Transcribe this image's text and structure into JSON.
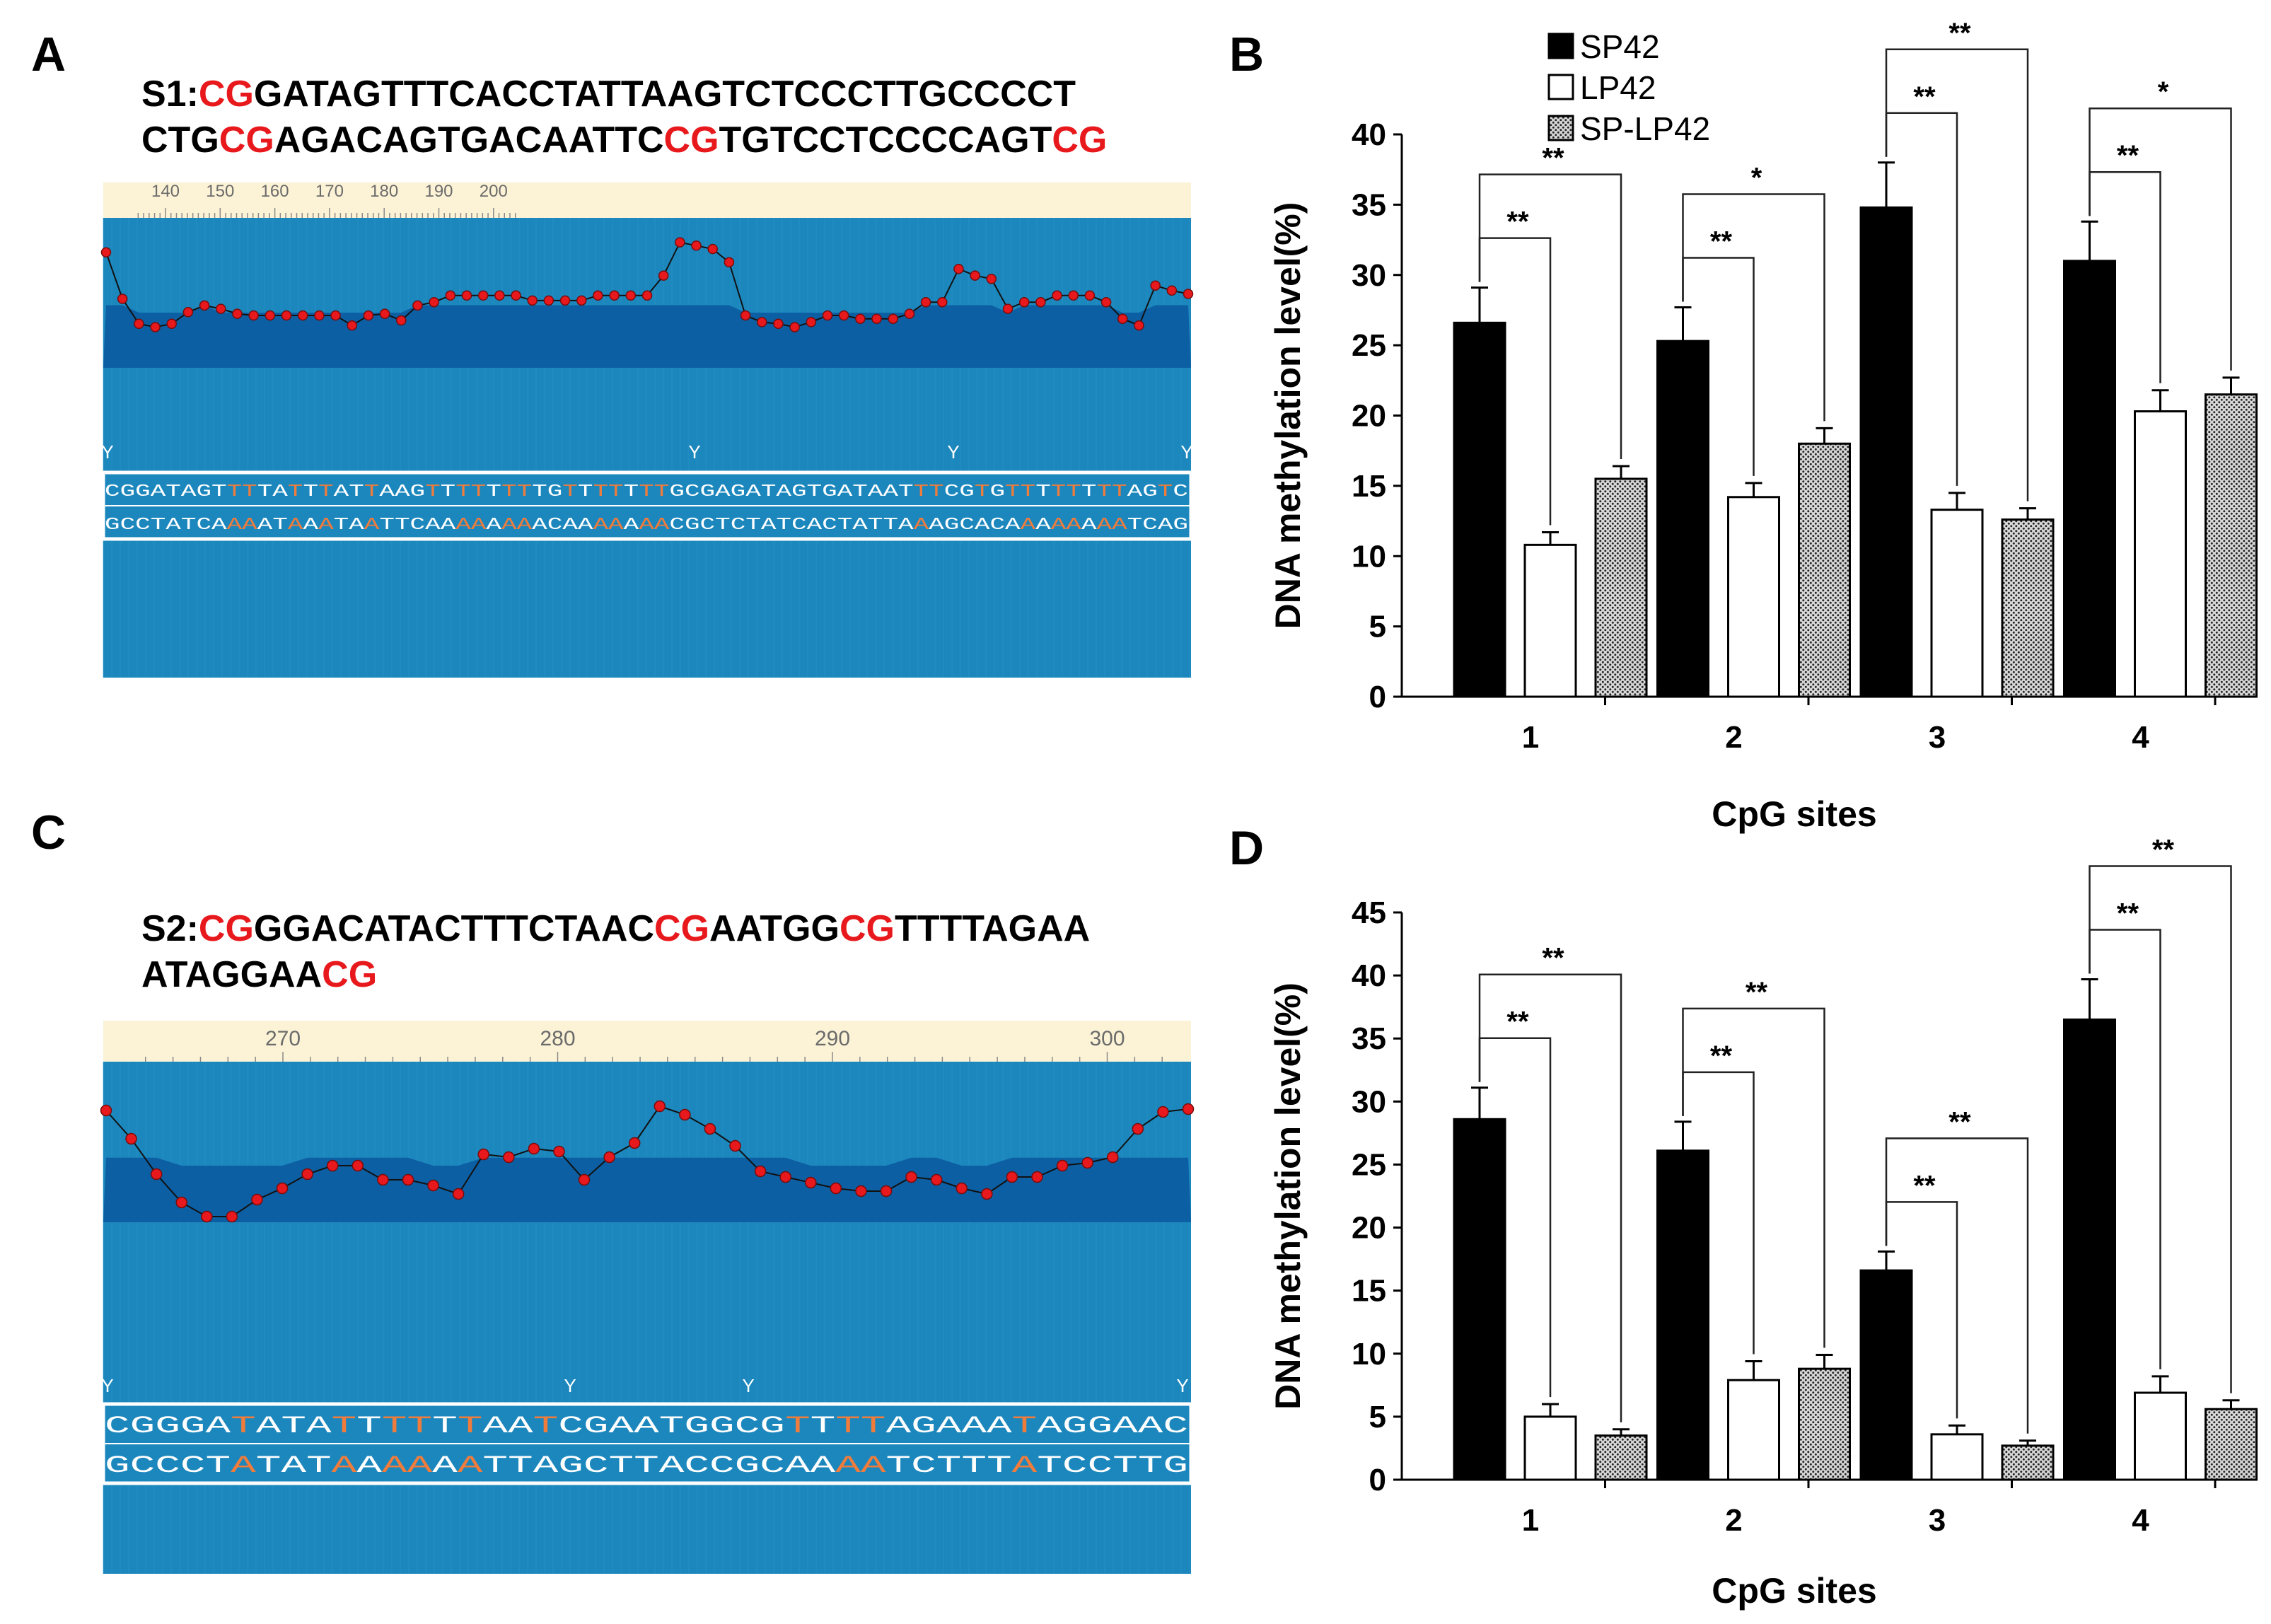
{
  "panels": {
    "A": {
      "letter": "A",
      "seq_line1": [
        {
          "t": "S1:",
          "red": false
        },
        {
          "t": "CG",
          "red": true
        },
        {
          "t": "GATAGTTTCACCTATTAAGTCTCCCTTGCCCCT",
          "red": false
        }
      ],
      "seq_line2": [
        {
          "t": "CTG",
          "red": false
        },
        {
          "t": "CG",
          "red": true
        },
        {
          "t": "AGACAGTGACAATTC",
          "red": false
        },
        {
          "t": "CG",
          "red": true
        },
        {
          "t": "TGTCCTCCCCAGT",
          "red": false
        },
        {
          "t": "CG",
          "red": true
        }
      ],
      "ruler": [
        "140",
        "150",
        "160",
        "170",
        "180",
        "190",
        "200"
      ],
      "y_marks": [
        "Y",
        "Y",
        "Y",
        "Y"
      ],
      "bisulfite_line1": "CGGATAGTTTTATTTATTAAGTTTTTTTTGTTTTTTTGCGAGATAGTGATAATTTCGTGTTTTTTTTAGTC",
      "bisulfite_line2": "GCCTATCAAAATAAATAATTCAAAAAAAACAAAAAAACGCTCTATCACTATTAAAGCACAAAAAAAATCAG",
      "profile": [
        0.78,
        0.5,
        0.35,
        0.33,
        0.35,
        0.42,
        0.46,
        0.44,
        0.41,
        0.4,
        0.4,
        0.4,
        0.4,
        0.4,
        0.4,
        0.34,
        0.4,
        0.41,
        0.37,
        0.46,
        0.48,
        0.52,
        0.52,
        0.52,
        0.52,
        0.52,
        0.49,
        0.49,
        0.49,
        0.49,
        0.52,
        0.52,
        0.52,
        0.52,
        0.64,
        0.84,
        0.82,
        0.8,
        0.72,
        0.4,
        0.36,
        0.35,
        0.33,
        0.36,
        0.4,
        0.4,
        0.38,
        0.38,
        0.38,
        0.41,
        0.48,
        0.48,
        0.68,
        0.64,
        0.62,
        0.44,
        0.48,
        0.48,
        0.52,
        0.52,
        0.52,
        0.48,
        0.38,
        0.34,
        0.58,
        0.55,
        0.53
      ]
    },
    "C": {
      "letter": "C",
      "seq_line1": [
        {
          "t": "S2:",
          "red": false
        },
        {
          "t": "CG",
          "red": true
        },
        {
          "t": "GGACATACTTTCTAAC",
          "red": false
        },
        {
          "t": "CG",
          "red": true
        },
        {
          "t": "AATGG",
          "red": false
        },
        {
          "t": "CG",
          "red": true
        },
        {
          "t": "TTTTAGAA",
          "red": false
        }
      ],
      "seq_line2": [
        {
          "t": "ATAGGAA",
          "red": false
        },
        {
          "t": "CG",
          "red": true
        }
      ],
      "ruler": [
        "270",
        "280",
        "290",
        "300"
      ],
      "y_marks": [
        "Y",
        "Y",
        "Y",
        "Y"
      ],
      "bisulfite_line1": "CGGGATATATTTTTTAATCGAATGGCGTTTTAGAAATAGGAAC",
      "bisulfite_line2": "GCCCTATATAAAAAATTAGCTTACCGCAAAATCTTTATCCTTG",
      "profile": [
        0.95,
        0.75,
        0.5,
        0.3,
        0.2,
        0.2,
        0.32,
        0.4,
        0.5,
        0.56,
        0.56,
        0.46,
        0.46,
        0.42,
        0.36,
        0.64,
        0.62,
        0.68,
        0.66,
        0.46,
        0.62,
        0.72,
        0.98,
        0.92,
        0.82,
        0.7,
        0.52,
        0.48,
        0.44,
        0.4,
        0.38,
        0.38,
        0.48,
        0.46,
        0.4,
        0.36,
        0.48,
        0.48,
        0.56,
        0.58,
        0.62,
        0.82,
        0.94,
        0.96
      ]
    }
  },
  "chart_data": [
    {
      "panel": "B",
      "type": "bar",
      "title": "",
      "xlabel": "CpG sites",
      "ylabel": "DNA methylation level(%)",
      "categories": [
        "1",
        "2",
        "3",
        "4"
      ],
      "ylim": [
        0,
        40
      ],
      "yticks": [
        "0",
        "5",
        "10",
        "15",
        "20",
        "25",
        "30",
        "35",
        "40"
      ],
      "legend": [
        "SP42",
        "LP42",
        "SP-LP42"
      ],
      "series": [
        {
          "name": "SP42",
          "values": [
            26.6,
            25.3,
            34.8,
            31.0
          ],
          "errors": [
            2.5,
            2.4,
            3.2,
            2.8
          ]
        },
        {
          "name": "LP42",
          "values": [
            10.8,
            14.2,
            13.3,
            20.3
          ],
          "errors": [
            0.9,
            1.0,
            1.2,
            1.5
          ]
        },
        {
          "name": "SP-LP42",
          "values": [
            15.5,
            18.0,
            12.6,
            21.5
          ],
          "errors": [
            0.9,
            1.1,
            0.8,
            1.2
          ]
        }
      ],
      "significance": [
        {
          "category": 0,
          "target": 1,
          "label": "**"
        },
        {
          "category": 0,
          "target": 2,
          "label": "**"
        },
        {
          "category": 1,
          "target": 1,
          "label": "**"
        },
        {
          "category": 1,
          "target": 2,
          "label": "*"
        },
        {
          "category": 2,
          "target": 1,
          "label": "**"
        },
        {
          "category": 2,
          "target": 2,
          "label": "**"
        },
        {
          "category": 3,
          "target": 1,
          "label": "**"
        },
        {
          "category": 3,
          "target": 2,
          "label": "*"
        }
      ]
    },
    {
      "panel": "D",
      "type": "bar",
      "title": "",
      "xlabel": "CpG sites",
      "ylabel": "DNA methylation level(%)",
      "categories": [
        "1",
        "2",
        "3",
        "4"
      ],
      "ylim": [
        0,
        45
      ],
      "yticks": [
        "0",
        "5",
        "10",
        "15",
        "20",
        "25",
        "30",
        "35",
        "40",
        "45"
      ],
      "legend": [],
      "series": [
        {
          "name": "SP42",
          "values": [
            28.6,
            26.1,
            16.6,
            36.5
          ],
          "errors": [
            2.5,
            2.3,
            1.5,
            3.2
          ]
        },
        {
          "name": "LP42",
          "values": [
            5.0,
            7.9,
            3.6,
            6.9
          ],
          "errors": [
            1.0,
            1.5,
            0.7,
            1.3
          ]
        },
        {
          "name": "SP-LP42",
          "values": [
            3.5,
            8.8,
            2.7,
            5.6
          ],
          "errors": [
            0.5,
            1.1,
            0.4,
            0.7
          ]
        }
      ],
      "significance": [
        {
          "category": 0,
          "target": 1,
          "label": "**"
        },
        {
          "category": 0,
          "target": 2,
          "label": "**"
        },
        {
          "category": 1,
          "target": 1,
          "label": "**"
        },
        {
          "category": 1,
          "target": 2,
          "label": "**"
        },
        {
          "category": 2,
          "target": 1,
          "label": "**"
        },
        {
          "category": 2,
          "target": 2,
          "label": "**"
        },
        {
          "category": 3,
          "target": 1,
          "label": "**"
        },
        {
          "category": 3,
          "target": 2,
          "label": "**"
        }
      ]
    }
  ],
  "colors": {
    "red": "#e8191d",
    "panel_blue_light": "#1c87bd",
    "panel_blue_dark": "#0d5fa3",
    "ruler_bg": "#fcf3d6",
    "sp42": "#000000",
    "lp42": "#ffffff",
    "sp_lp42": "#9a9a9a"
  }
}
